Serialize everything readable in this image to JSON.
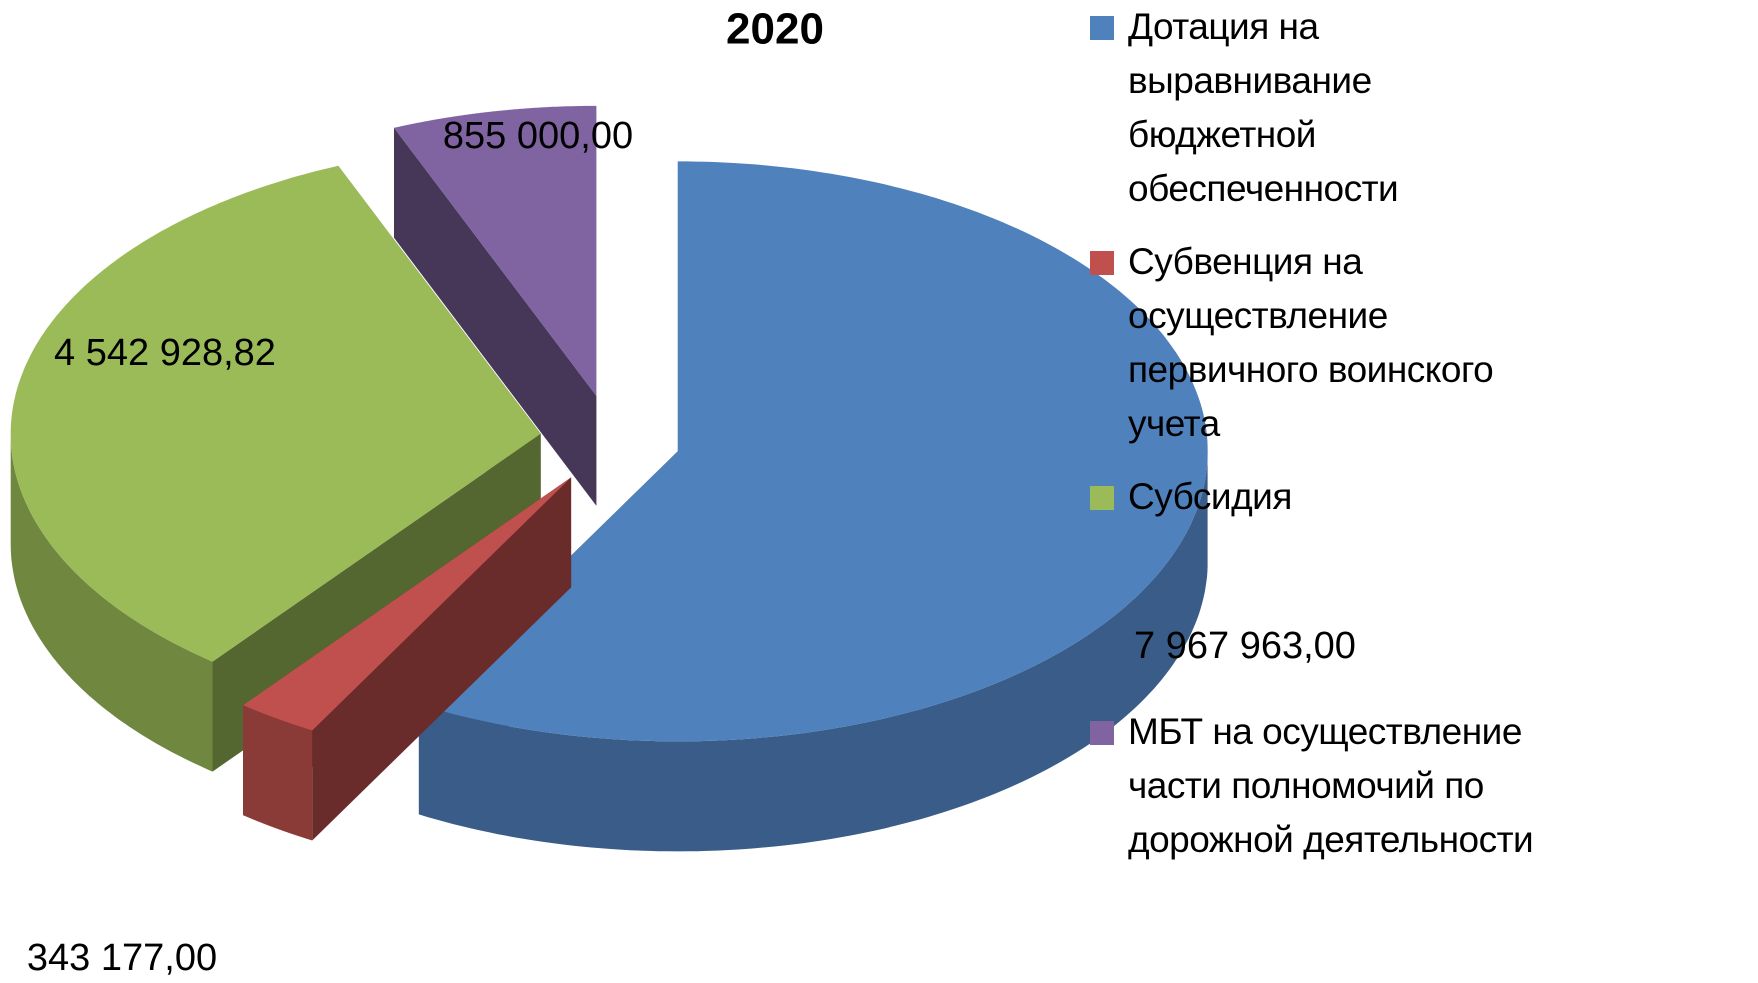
{
  "chart_data": {
    "type": "pie3d",
    "title": "2020",
    "categories": [
      "Дотация на\nвыравнивание\nбюджетной\nобеспеченности",
      "Субвенция на\nосуществление\nпервичного воинского\nучета",
      "Субсидия",
      "МБТ на осуществление\nчасти полномочий по\nдорожной деятельности"
    ],
    "values": [
      7967963,
      343177,
      4542928.82,
      855000
    ],
    "value_labels": [
      "7 967 963,00",
      "343 177,00",
      "4 542 928,82",
      "855 000,00"
    ],
    "colors": [
      "#4f81bd",
      "#c0504d",
      "#9bbb59",
      "#8064a2"
    ],
    "legend": "right"
  }
}
